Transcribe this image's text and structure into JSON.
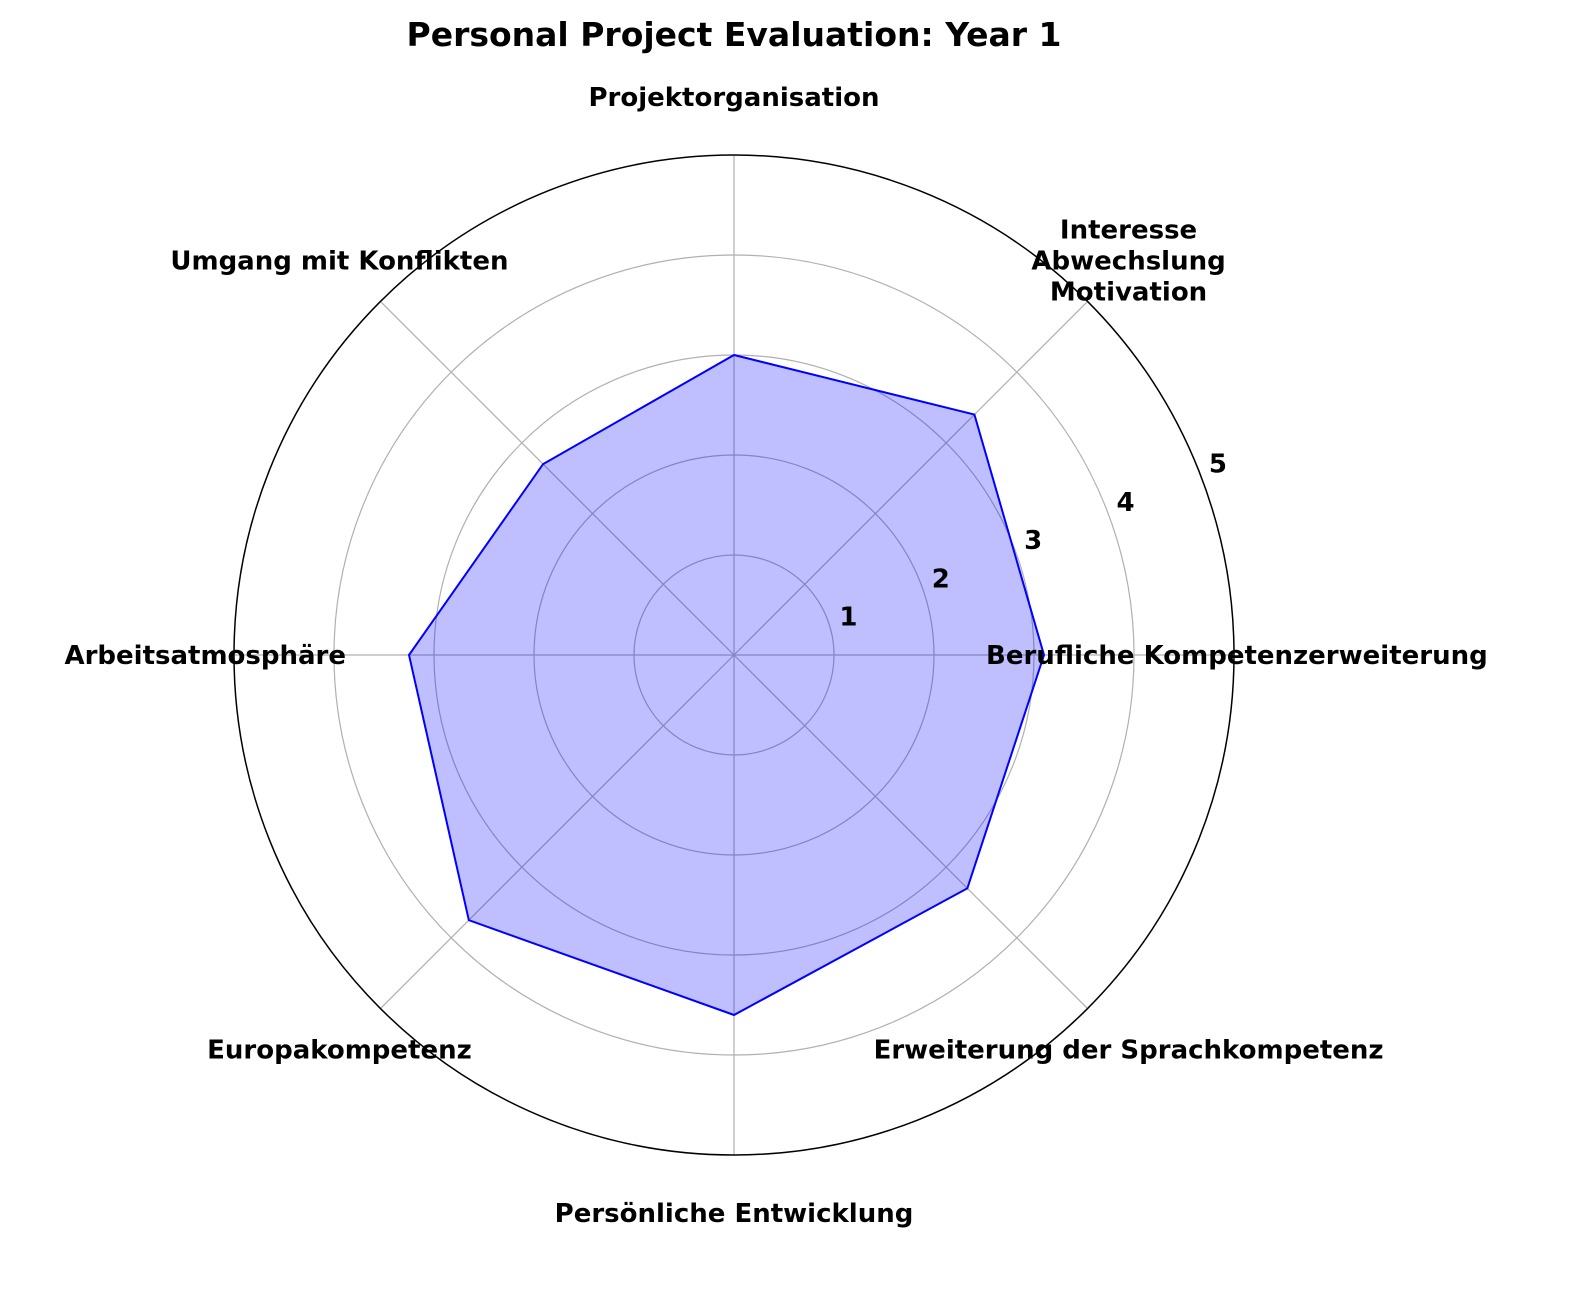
{
  "chart_data": {
    "type": "radar",
    "title": "Personal Project Evaluation: Year 1",
    "categories": [
      "Berufliche Kompetenzerweiterung",
      "Interesse\nAbwechslung\nMotivation",
      "Projektorganisation",
      "Umgang mit Konflikten",
      "Arbeitsatmosphäre",
      "Europakompetenz",
      "Persönliche Entwicklung",
      "Erweiterung der Sprachkompetenz"
    ],
    "series": [
      {
        "values": [
          3.1,
          3.4,
          3.0,
          2.7,
          3.25,
          3.75,
          3.6,
          3.3
        ]
      }
    ],
    "rlim": [
      0,
      5
    ],
    "rticks": [
      1,
      2,
      3,
      4,
      5
    ],
    "grid": true,
    "colors": {
      "line": "#0000ff",
      "fill": "#0000ff",
      "fill_opacity": 0.25,
      "grid": "#b0b0b0",
      "outer_ring": "#000000"
    }
  }
}
